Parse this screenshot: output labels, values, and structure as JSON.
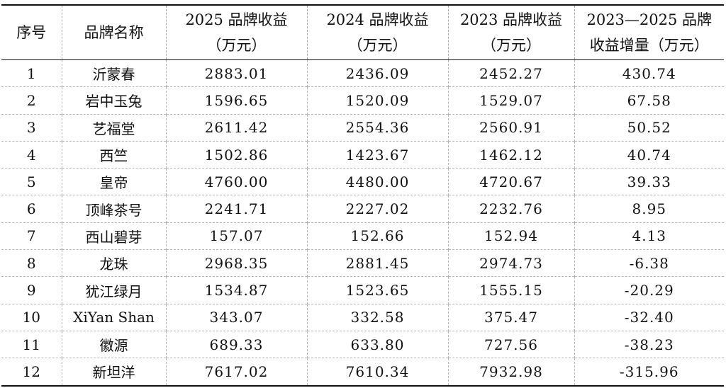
{
  "table": {
    "headers": [
      {
        "line1": "序号",
        "line2": ""
      },
      {
        "line1": "品牌名称",
        "line2": ""
      },
      {
        "line1": "2025 品牌收益",
        "line2": "（万元）"
      },
      {
        "line1": "2024 品牌收益",
        "line2": "（万元）"
      },
      {
        "line1": "2023 品牌收益",
        "line2": "（万元）"
      },
      {
        "line1": "2023—2025 品牌",
        "line2": "收益增量（万元）"
      }
    ],
    "rows": [
      [
        "1",
        "沂蒙春",
        "2883.01",
        "2436.09",
        "2452.27",
        "430.74"
      ],
      [
        "2",
        "岩中玉兔",
        "1596.65",
        "1520.09",
        "1529.07",
        "67.58"
      ],
      [
        "3",
        "艺福堂",
        "2611.42",
        "2554.36",
        "2560.91",
        "50.52"
      ],
      [
        "4",
        "西竺",
        "1502.86",
        "1423.67",
        "1462.12",
        "40.74"
      ],
      [
        "5",
        "皇帝",
        "4760.00",
        "4480.00",
        "4720.67",
        "39.33"
      ],
      [
        "6",
        "顶峰茶号",
        "2241.71",
        "2227.02",
        "2232.76",
        "8.95"
      ],
      [
        "7",
        "西山碧芽",
        "157.07",
        "152.66",
        "152.94",
        "4.13"
      ],
      [
        "8",
        "龙珠",
        "2968.35",
        "2881.45",
        "2974.73",
        "-6.38"
      ],
      [
        "9",
        "犹江绿月",
        "1534.87",
        "1523.65",
        "1555.15",
        "-20.29"
      ],
      [
        "10",
        "XiYan Shan",
        "343.07",
        "332.58",
        "375.47",
        "-32.40"
      ],
      [
        "11",
        "徽源",
        "689.33",
        "633.80",
        "727.56",
        "-38.23"
      ],
      [
        "12",
        "新坦洋",
        "7617.02",
        "7610.34",
        "7932.98",
        "-315.96"
      ]
    ]
  }
}
